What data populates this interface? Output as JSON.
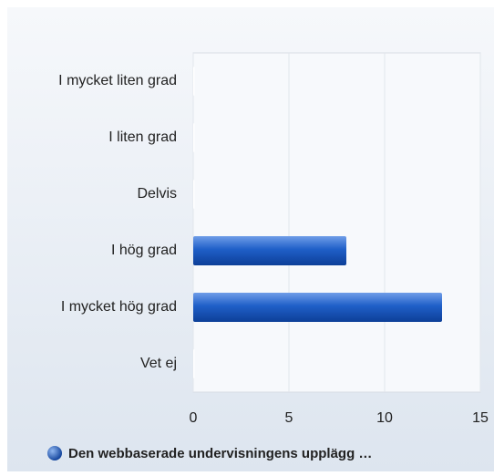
{
  "chart_data": {
    "type": "bar",
    "orientation": "horizontal",
    "categories": [
      "I mycket liten grad",
      "I liten grad",
      "Delvis",
      "I hög grad",
      "I mycket hög grad",
      "Vet ej"
    ],
    "series": [
      {
        "name": "Den webbaserade undervisningens upplägg …",
        "color": "#1f5fc8",
        "values": [
          0,
          0,
          0,
          8,
          13,
          0
        ]
      }
    ],
    "xlim": [
      0,
      15
    ],
    "xticks": [
      0,
      5,
      10,
      15
    ],
    "grid": true,
    "legend": "bottom"
  }
}
